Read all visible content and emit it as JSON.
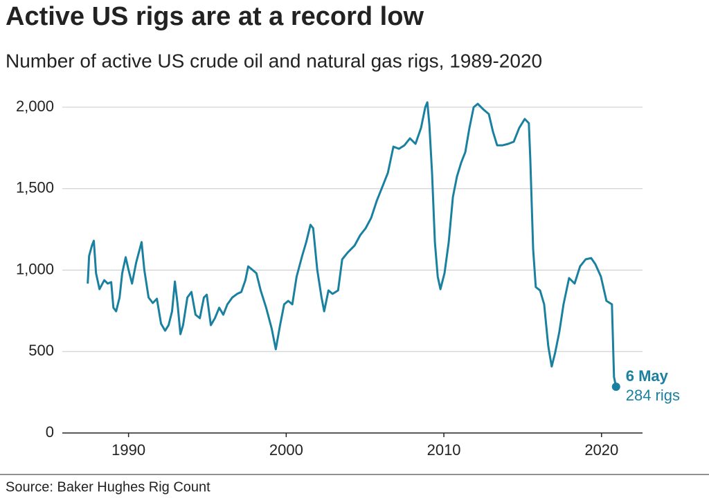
{
  "chart_data": {
    "type": "line",
    "title": "Active US rigs are at a record low",
    "subtitle": "Number of active US crude oil and natural gas rigs, 1989-2020",
    "source": "Source: Baker Hughes Rig Count",
    "color": "#1a80a0",
    "grid": true,
    "xlim": [
      1985.8,
      2022.6
    ],
    "xticks": [
      1990,
      2000,
      2010,
      2020
    ],
    "ylim": [
      0,
      2000
    ],
    "yticks": [
      0,
      500,
      {
        "value": 1000,
        "label": "1,000"
      },
      {
        "value": 1500,
        "label": "1,500"
      },
      {
        "value": 2000,
        "label": "2,000"
      }
    ],
    "annotations": [
      {
        "title": "6 May",
        "text": "284 rigs"
      }
    ],
    "x": [
      1987.41,
      1987.5,
      1987.68,
      1987.8,
      1987.94,
      1988.16,
      1988.46,
      1988.68,
      1988.9,
      1989.04,
      1989.21,
      1989.43,
      1989.6,
      1989.82,
      1990,
      1990.22,
      1990.48,
      1990.83,
      1991,
      1991.27,
      1991.54,
      1991.8,
      1992.06,
      1992.32,
      1992.54,
      1992.76,
      1992.94,
      1993.11,
      1993.29,
      1993.46,
      1993.73,
      1993.99,
      1994.25,
      1994.52,
      1994.78,
      1994.96,
      1995.22,
      1995.48,
      1995.75,
      1996.01,
      1996.27,
      1996.58,
      1996.89,
      1997.15,
      1997.41,
      1997.59,
      1997.85,
      1998.11,
      1998.38,
      1998.73,
      1999.08,
      1999.34,
      1999.61,
      1999.87,
      2000.13,
      2000.39,
      2000.66,
      2001.01,
      2001.27,
      2001.54,
      2001.71,
      2001.97,
      2002.24,
      2002.41,
      2002.68,
      2002.94,
      2003.29,
      2003.55,
      2003.9,
      2004.34,
      2004.69,
      2005.04,
      2005.39,
      2005.75,
      2006.1,
      2006.45,
      2006.8,
      2007.15,
      2007.5,
      2007.85,
      2008.2,
      2008.55,
      2008.82,
      2008.95,
      2009.08,
      2009.25,
      2009.43,
      2009.61,
      2009.78,
      2010.04,
      2010.31,
      2010.57,
      2010.83,
      2011.1,
      2011.36,
      2011.62,
      2011.89,
      2012.15,
      2012.5,
      2012.85,
      2013.11,
      2013.38,
      2013.73,
      2014.08,
      2014.43,
      2014.78,
      2015.13,
      2015.39,
      2015.48,
      2015.66,
      2015.83,
      2016.1,
      2016.36,
      2016.62,
      2016.84,
      2017.06,
      2017.32,
      2017.59,
      2017.94,
      2018.29,
      2018.64,
      2018.99,
      2019.34,
      2019.61,
      2019.96,
      2020.31,
      2020.66,
      2020.79,
      2020.92
    ],
    "values": [
      917,
      1087,
      1151,
      1180,
      981,
      883,
      938,
      917,
      926,
      769,
      747,
      832,
      981,
      1079,
      1002,
      917,
      1045,
      1172,
      1002,
      832,
      798,
      824,
      671,
      628,
      662,
      747,
      930,
      790,
      607,
      662,
      832,
      866,
      726,
      705,
      832,
      849,
      662,
      705,
      769,
      726,
      790,
      832,
      854,
      866,
      938,
      1023,
      1002,
      981,
      875,
      769,
      641,
      514,
      662,
      790,
      811,
      790,
      960,
      1087,
      1172,
      1278,
      1257,
      1002,
      832,
      747,
      875,
      854,
      875,
      1066,
      1108,
      1151,
      1214,
      1257,
      1321,
      1427,
      1512,
      1597,
      1758,
      1745,
      1766,
      1809,
      1775,
      1873,
      2000,
      2030,
      1894,
      1597,
      1172,
      960,
      883,
      981,
      1172,
      1448,
      1575,
      1660,
      1724,
      1873,
      2000,
      2021,
      1987,
      1958,
      1851,
      1766,
      1766,
      1775,
      1788,
      1873,
      1928,
      1902,
      1682,
      1130,
      896,
      875,
      790,
      535,
      408,
      493,
      620,
      790,
      951,
      917,
      1023,
      1066,
      1074,
      1036,
      960,
      811,
      790,
      344,
      284
    ]
  }
}
